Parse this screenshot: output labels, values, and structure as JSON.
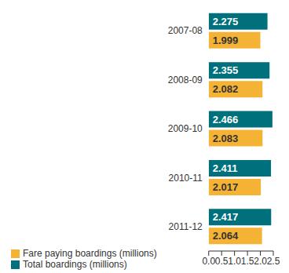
{
  "chart_data": {
    "type": "bar",
    "orientation": "horizontal",
    "categories": [
      "2007-08",
      "2008-09",
      "2009-10",
      "2010-11",
      "2011-12"
    ],
    "series": [
      {
        "name": "Total boardings (millions)",
        "color": "#00717c",
        "values": [
          2.275,
          2.355,
          2.466,
          2.411,
          2.417
        ]
      },
      {
        "name": "Fare paying boardings (millions)",
        "color": "#f5b335",
        "values": [
          1.999,
          2.082,
          2.083,
          2.017,
          2.064
        ]
      }
    ],
    "xlim": [
      0,
      2.5
    ],
    "xticks": [
      {
        "value": 0,
        "label": "0.0"
      },
      0.5,
      {
        "value": 1,
        "label": "1.0"
      },
      1.5,
      {
        "value": 2,
        "label": "2.0"
      },
      2.5
    ],
    "data_labels": true,
    "grid": false,
    "legend": "bottom"
  }
}
